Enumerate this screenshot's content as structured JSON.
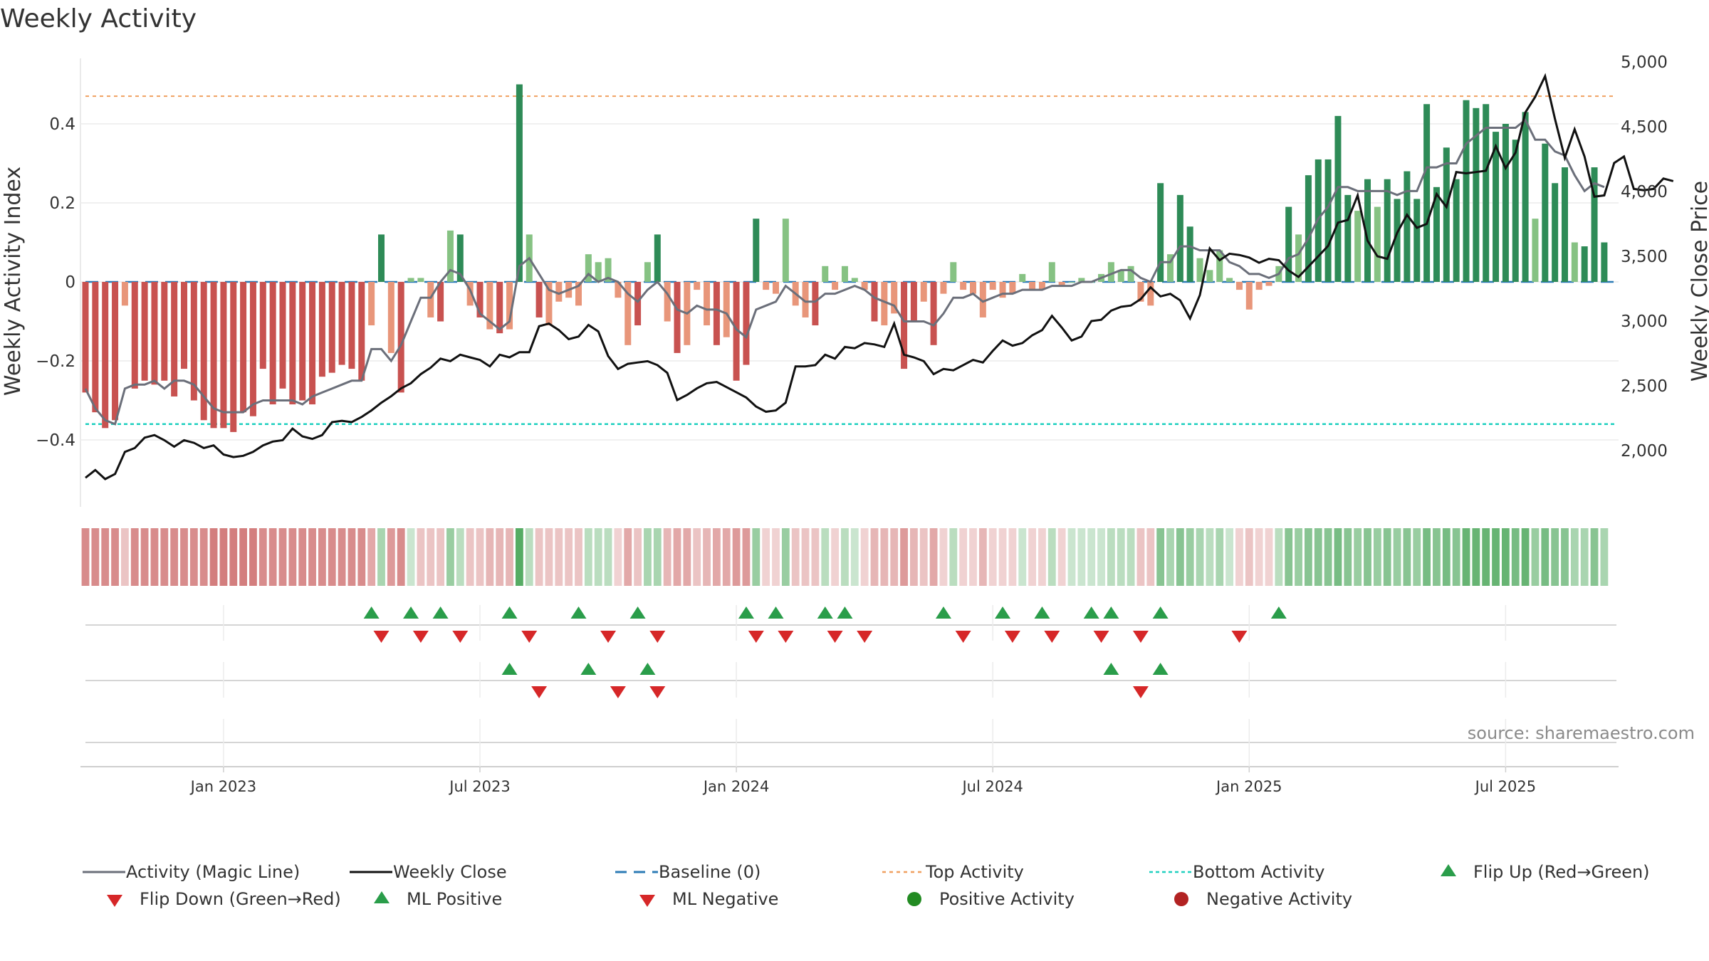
{
  "title": "Weekly Activity",
  "source": "source: sharemaestro.com",
  "colors": {
    "pos_dark": "#2e8b57",
    "pos_light": "#86c283",
    "neg_dark": "#c85250",
    "neg_light": "#e8967a",
    "magic_line": "#6b6f7a",
    "close_line": "#111111",
    "baseline": "#2c7bb6",
    "top_line": "#f0a060",
    "bottom_line": "#20d0c0",
    "flip_up": "#2a9d4a",
    "flip_down": "#d62728",
    "pos_dot": "#228b22",
    "neg_dot": "#b22222"
  },
  "chart_data": {
    "type": "bar",
    "title": "Weekly Activity",
    "ylabel": "Weekly Activity Index",
    "y2label": "Weekly Close Price",
    "ylim": [
      -0.57,
      0.57
    ],
    "y2lim": [
      1650,
      5050
    ],
    "yticks": [
      {
        "v": 0.4,
        "label": "0.4"
      },
      {
        "v": 0.2,
        "label": "0.2"
      },
      {
        "v": 0,
        "label": "0"
      },
      {
        "v": -0.2,
        "label": "−0.2"
      },
      {
        "v": -0.4,
        "label": "−0.4"
      }
    ],
    "y2ticks": [
      {
        "v": 5000,
        "label": "5,000"
      },
      {
        "v": 4500,
        "label": "4,500"
      },
      {
        "v": 4000,
        "label": "4,000"
      },
      {
        "v": 3500,
        "label": "3,500"
      },
      {
        "v": 3000,
        "label": "3,000"
      },
      {
        "v": 2500,
        "label": "2,500"
      },
      {
        "v": 2000,
        "label": "2,000"
      }
    ],
    "xticks": [
      {
        "week": 14,
        "label": "Jan 2023"
      },
      {
        "week": 40,
        "label": "Jul 2023"
      },
      {
        "week": 66,
        "label": "Jan 2024"
      },
      {
        "week": 92,
        "label": "Jul 2024"
      },
      {
        "week": 118,
        "label": "Jan 2025"
      },
      {
        "week": 144,
        "label": "Jul 2025"
      }
    ],
    "top_activity": 0.47,
    "bottom_activity": -0.36,
    "baseline": 0,
    "weeks": 157,
    "activity": [
      -0.28,
      -0.33,
      -0.37,
      -0.35,
      -0.06,
      -0.27,
      -0.25,
      -0.26,
      -0.25,
      -0.29,
      -0.22,
      -0.3,
      -0.35,
      -0.37,
      -0.37,
      -0.38,
      -0.33,
      -0.34,
      -0.22,
      -0.31,
      -0.27,
      -0.31,
      -0.3,
      -0.31,
      -0.24,
      -0.23,
      -0.21,
      -0.22,
      -0.25,
      -0.11,
      0.12,
      -0.18,
      -0.28,
      0.01,
      0.01,
      -0.09,
      -0.1,
      0.13,
      0.12,
      -0.06,
      -0.09,
      -0.12,
      -0.13,
      -0.12,
      0.5,
      0.12,
      -0.09,
      -0.11,
      -0.05,
      -0.04,
      -0.06,
      0.07,
      0.05,
      0.06,
      -0.04,
      -0.16,
      -0.11,
      0.05,
      0.12,
      -0.1,
      -0.18,
      -0.16,
      -0.02,
      -0.11,
      -0.16,
      -0.14,
      -0.25,
      -0.21,
      0.16,
      -0.02,
      -0.03,
      0.16,
      -0.06,
      -0.09,
      -0.11,
      0.04,
      -0.02,
      0.04,
      0.01,
      -0.02,
      -0.1,
      -0.11,
      -0.08,
      -0.22,
      -0.1,
      -0.05,
      -0.16,
      -0.03,
      0.05,
      -0.02,
      -0.03,
      -0.09,
      -0.02,
      -0.04,
      -0.03,
      0.02,
      -0.02,
      -0.02,
      0.05,
      -0.01,
      0.0,
      0.01,
      0.0,
      0.02,
      0.05,
      0.03,
      0.04,
      -0.05,
      -0.06,
      0.25,
      0.07,
      0.22,
      0.14,
      0.06,
      0.03,
      0.08,
      0.01,
      -0.02,
      -0.07,
      -0.02,
      -0.01,
      0.04,
      0.19,
      0.12,
      0.27,
      0.31,
      0.31,
      0.42,
      0.22,
      0.18,
      0.26,
      0.19,
      0.26,
      0.21,
      0.28,
      0.21,
      0.45,
      0.24,
      0.34,
      0.26,
      0.46,
      0.44,
      0.45,
      0.38,
      0.4,
      0.36,
      0.43,
      0.16,
      0.35,
      0.25,
      0.29,
      0.1,
      0.09,
      0.29,
      0.1
    ],
    "magic_line": [
      -0.27,
      -0.32,
      -0.35,
      -0.36,
      -0.27,
      -0.26,
      -0.26,
      -0.25,
      -0.27,
      -0.25,
      -0.25,
      -0.26,
      -0.29,
      -0.32,
      -0.33,
      -0.33,
      -0.33,
      -0.31,
      -0.3,
      -0.3,
      -0.3,
      -0.3,
      -0.31,
      -0.29,
      -0.28,
      -0.27,
      -0.26,
      -0.25,
      -0.25,
      -0.17,
      -0.17,
      -0.2,
      -0.16,
      -0.1,
      -0.04,
      -0.04,
      0.0,
      0.03,
      0.02,
      -0.02,
      -0.08,
      -0.1,
      -0.12,
      -0.1,
      0.04,
      0.06,
      0.02,
      -0.02,
      -0.03,
      -0.02,
      -0.01,
      0.02,
      0.0,
      0.01,
      0.0,
      -0.03,
      -0.05,
      -0.02,
      0.0,
      -0.03,
      -0.07,
      -0.08,
      -0.06,
      -0.07,
      -0.07,
      -0.08,
      -0.12,
      -0.14,
      -0.07,
      -0.06,
      -0.05,
      -0.01,
      -0.03,
      -0.05,
      -0.05,
      -0.03,
      -0.03,
      -0.02,
      -0.01,
      -0.02,
      -0.04,
      -0.05,
      -0.06,
      -0.1,
      -0.1,
      -0.1,
      -0.11,
      -0.08,
      -0.04,
      -0.04,
      -0.03,
      -0.05,
      -0.04,
      -0.03,
      -0.03,
      -0.02,
      -0.02,
      -0.02,
      -0.01,
      -0.01,
      -0.01,
      0.0,
      0.0,
      0.01,
      0.02,
      0.03,
      0.03,
      0.01,
      0.0,
      0.05,
      0.05,
      0.09,
      0.09,
      0.08,
      0.08,
      0.08,
      0.05,
      0.04,
      0.02,
      0.02,
      0.01,
      0.02,
      0.06,
      0.07,
      0.11,
      0.16,
      0.19,
      0.24,
      0.24,
      0.23,
      0.23,
      0.23,
      0.23,
      0.22,
      0.23,
      0.23,
      0.29,
      0.29,
      0.3,
      0.3,
      0.35,
      0.37,
      0.39,
      0.39,
      0.39,
      0.39,
      0.41,
      0.36,
      0.36,
      0.33,
      0.32,
      0.27,
      0.23,
      0.25,
      0.24
    ],
    "weekly_close": [
      1790,
      1850,
      1780,
      1820,
      1990,
      2020,
      2100,
      2120,
      2080,
      2030,
      2080,
      2060,
      2020,
      2040,
      1970,
      1950,
      1960,
      1990,
      2040,
      2070,
      2080,
      2170,
      2110,
      2090,
      2120,
      2220,
      2230,
      2220,
      2260,
      2310,
      2370,
      2420,
      2480,
      2520,
      2590,
      2640,
      2710,
      2690,
      2740,
      2720,
      2700,
      2650,
      2740,
      2720,
      2760,
      2760,
      2960,
      2980,
      2930,
      2860,
      2880,
      2970,
      2920,
      2730,
      2630,
      2670,
      2680,
      2690,
      2660,
      2600,
      2390,
      2430,
      2480,
      2520,
      2530,
      2490,
      2450,
      2410,
      2340,
      2300,
      2310,
      2370,
      2650,
      2650,
      2660,
      2740,
      2710,
      2800,
      2790,
      2830,
      2820,
      2800,
      2980,
      2740,
      2720,
      2690,
      2590,
      2630,
      2620,
      2660,
      2700,
      2680,
      2770,
      2850,
      2810,
      2830,
      2890,
      2930,
      3040,
      2950,
      2850,
      2880,
      3000,
      3010,
      3080,
      3110,
      3120,
      3170,
      3260,
      3190,
      3210,
      3160,
      3020,
      3200,
      3560,
      3470,
      3520,
      3510,
      3490,
      3450,
      3480,
      3470,
      3390,
      3340,
      3420,
      3500,
      3580,
      3760,
      3780,
      3970,
      3620,
      3500,
      3480,
      3680,
      3820,
      3720,
      3750,
      3980,
      3880,
      4150,
      4140,
      4150,
      4160,
      4350,
      4180,
      4300,
      4610,
      4730,
      4890,
      4560,
      4260,
      4480,
      4270,
      3960,
      3970,
      4220,
      4270,
      4020,
      4010,
      4020,
      4100,
      4080
    ],
    "strip_intensity": [
      -0.7,
      -0.7,
      -0.7,
      -0.7,
      -0.3,
      -0.7,
      -0.7,
      -0.7,
      -0.7,
      -0.7,
      -0.7,
      -0.7,
      -0.7,
      -0.8,
      -0.8,
      -0.8,
      -0.8,
      -0.8,
      -0.7,
      -0.7,
      -0.7,
      -0.7,
      -0.7,
      -0.7,
      -0.7,
      -0.7,
      -0.7,
      -0.7,
      -0.7,
      -0.5,
      0.4,
      -0.6,
      -0.7,
      0.2,
      -0.3,
      -0.3,
      -0.3,
      0.5,
      0.3,
      -0.3,
      -0.3,
      -0.4,
      -0.4,
      -0.4,
      0.9,
      0.3,
      -0.3,
      -0.3,
      -0.3,
      -0.3,
      -0.3,
      0.3,
      0.3,
      0.3,
      -0.2,
      -0.5,
      -0.3,
      0.4,
      0.4,
      -0.4,
      -0.5,
      -0.5,
      -0.3,
      -0.4,
      -0.5,
      -0.5,
      -0.6,
      -0.6,
      0.5,
      -0.2,
      -0.2,
      0.5,
      -0.3,
      -0.3,
      -0.3,
      0.3,
      -0.2,
      0.3,
      0.2,
      -0.2,
      -0.4,
      -0.4,
      -0.4,
      -0.6,
      -0.4,
      -0.3,
      -0.5,
      -0.2,
      0.3,
      -0.2,
      -0.2,
      -0.4,
      -0.2,
      -0.2,
      -0.2,
      0.2,
      -0.2,
      -0.2,
      0.3,
      -0.2,
      0.2,
      0.2,
      0.2,
      0.2,
      0.3,
      0.3,
      0.3,
      -0.3,
      -0.3,
      0.6,
      0.4,
      0.6,
      0.5,
      0.4,
      0.3,
      0.4,
      0.2,
      -0.2,
      -0.3,
      -0.2,
      -0.2,
      0.3,
      0.6,
      0.5,
      0.6,
      0.6,
      0.6,
      0.7,
      0.6,
      0.5,
      0.6,
      0.5,
      0.6,
      0.5,
      0.6,
      0.5,
      0.7,
      0.6,
      0.7,
      0.6,
      0.8,
      0.8,
      0.8,
      0.8,
      0.8,
      0.7,
      0.8,
      0.5,
      0.7,
      0.6,
      0.6,
      0.4,
      0.4,
      0.6,
      0.4
    ],
    "flip_up_weeks": [
      29,
      33,
      36,
      43,
      50,
      56,
      67,
      70,
      75,
      77,
      87,
      93,
      97,
      102,
      104,
      109,
      121
    ],
    "flip_down_weeks": [
      30,
      34,
      38,
      45,
      53,
      58,
      68,
      71,
      76,
      79,
      89,
      94,
      98,
      103,
      107,
      117
    ],
    "ml_positive_weeks": [
      43,
      51,
      57,
      104,
      109
    ],
    "ml_negative_weeks": [
      46,
      54,
      58,
      107
    ],
    "legend": [
      {
        "key": "magic",
        "label": "Activity (Magic Line)"
      },
      {
        "key": "close",
        "label": "Weekly Close"
      },
      {
        "key": "baseline",
        "label": "Baseline (0)"
      },
      {
        "key": "top",
        "label": "Top Activity"
      },
      {
        "key": "bottom",
        "label": "Bottom Activity"
      },
      {
        "key": "flipup",
        "label": "Flip Up (Red→Green)"
      },
      {
        "key": "flipdown",
        "label": "Flip Down (Green→Red)"
      },
      {
        "key": "mlpos",
        "label": "ML Positive"
      },
      {
        "key": "mlneg",
        "label": "ML Negative"
      },
      {
        "key": "posdot",
        "label": "Positive Activity"
      },
      {
        "key": "negdot",
        "label": "Negative Activity"
      }
    ]
  }
}
